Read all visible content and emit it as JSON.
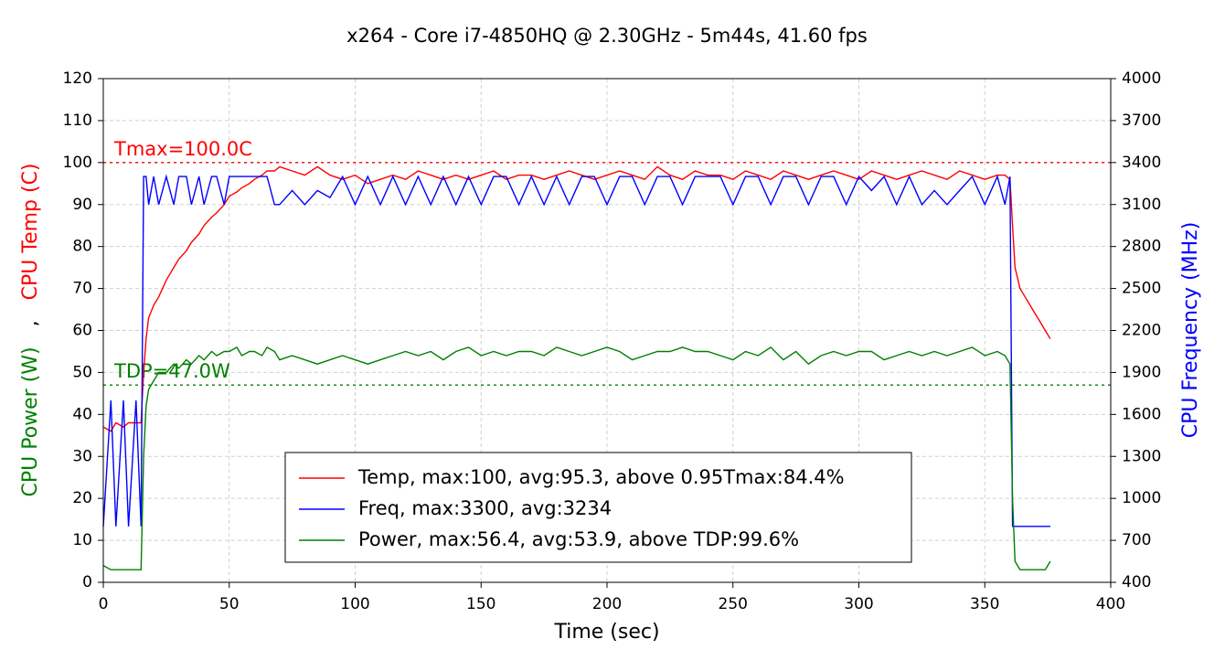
{
  "chart_data": {
    "type": "line",
    "title": "x264 - Core i7-4850HQ @ 2.30GHz - 5m44s, 41.60 fps",
    "xlabel": "Time (sec)",
    "ylabel_parts": [
      {
        "text": "CPU Power (W)",
        "color": "#008000"
      },
      {
        "text": ",",
        "color": "#000000"
      },
      {
        "text": "CPU Temp (C)",
        "color": "#ff0000"
      }
    ],
    "y2label": "CPU Frequency (MHz)",
    "y2label_color": "#0000ff",
    "xlim": [
      0,
      400
    ],
    "xticks": [
      0,
      50,
      100,
      150,
      200,
      250,
      300,
      350,
      400
    ],
    "ylim": [
      0,
      120
    ],
    "yticks": [
      0,
      10,
      20,
      30,
      40,
      50,
      60,
      70,
      80,
      90,
      100,
      110,
      120
    ],
    "y2lim": [
      400,
      4000
    ],
    "y2ticks": [
      400,
      700,
      1000,
      1300,
      1600,
      1900,
      2200,
      2500,
      2800,
      3100,
      3400,
      3700,
      4000
    ],
    "grid": true,
    "reference_lines": [
      {
        "text": "Tmax=100.0C",
        "y": 100,
        "color": "#ff0000"
      },
      {
        "text": "TDP=47.0W",
        "y": 47,
        "color": "#008000"
      }
    ],
    "x": [
      0,
      3,
      5,
      8,
      10,
      13,
      15,
      16,
      17,
      18,
      20,
      22,
      25,
      28,
      30,
      33,
      35,
      38,
      40,
      43,
      45,
      48,
      50,
      53,
      55,
      58,
      60,
      63,
      65,
      68,
      70,
      75,
      80,
      85,
      90,
      95,
      100,
      105,
      110,
      115,
      120,
      125,
      130,
      135,
      140,
      145,
      150,
      155,
      160,
      165,
      170,
      175,
      180,
      185,
      190,
      195,
      200,
      205,
      210,
      215,
      220,
      225,
      230,
      235,
      240,
      245,
      250,
      255,
      260,
      265,
      270,
      275,
      280,
      285,
      290,
      295,
      300,
      305,
      310,
      315,
      320,
      325,
      330,
      335,
      340,
      345,
      350,
      355,
      358,
      360,
      361,
      362,
      364,
      366,
      368,
      370,
      372,
      374,
      376
    ],
    "series": [
      {
        "name": "Temp, max:100, avg:95.3, above 0.95Tmax:84.4%",
        "color": "#ff0000",
        "axis": "y",
        "values": [
          37,
          36,
          38,
          37,
          38,
          38,
          38,
          50,
          58,
          63,
          66,
          68,
          72,
          75,
          77,
          79,
          81,
          83,
          85,
          87,
          88,
          90,
          92,
          93,
          94,
          95,
          96,
          97,
          98,
          98,
          99,
          98,
          97,
          99,
          97,
          96,
          97,
          95,
          96,
          97,
          96,
          98,
          97,
          96,
          97,
          96,
          97,
          98,
          96,
          97,
          97,
          96,
          97,
          98,
          97,
          96,
          97,
          98,
          97,
          96,
          99,
          97,
          96,
          98,
          97,
          97,
          96,
          98,
          97,
          96,
          98,
          97,
          96,
          97,
          98,
          97,
          96,
          98,
          97,
          96,
          97,
          98,
          97,
          96,
          98,
          97,
          96,
          97,
          97,
          96,
          85,
          75,
          70,
          68,
          66,
          64,
          62,
          60,
          58
        ]
      },
      {
        "name": "Freq, max:3300, avg:3234",
        "color": "#0000ff",
        "axis": "y2",
        "values": [
          800,
          1700,
          800,
          1700,
          800,
          1700,
          800,
          3300,
          3300,
          3100,
          3300,
          3100,
          3300,
          3100,
          3300,
          3300,
          3100,
          3300,
          3100,
          3300,
          3300,
          3100,
          3300,
          3300,
          3300,
          3300,
          3300,
          3300,
          3300,
          3100,
          3100,
          3200,
          3100,
          3200,
          3150,
          3300,
          3100,
          3300,
          3100,
          3300,
          3100,
          3300,
          3100,
          3300,
          3100,
          3300,
          3100,
          3300,
          3300,
          3100,
          3300,
          3100,
          3300,
          3100,
          3300,
          3300,
          3100,
          3300,
          3300,
          3100,
          3300,
          3300,
          3100,
          3300,
          3300,
          3300,
          3100,
          3300,
          3300,
          3100,
          3300,
          3300,
          3100,
          3300,
          3300,
          3100,
          3300,
          3200,
          3300,
          3100,
          3300,
          3100,
          3200,
          3100,
          3200,
          3300,
          3100,
          3300,
          3100,
          3300,
          800,
          800,
          800,
          800,
          800,
          800,
          800,
          800,
          800
        ]
      },
      {
        "name": "Power, max:56.4, avg:53.9, above TDP:99.6%",
        "color": "#008000",
        "axis": "y",
        "values": [
          4,
          3,
          3,
          3,
          3,
          3,
          3,
          30,
          42,
          46,
          48,
          50,
          50,
          52,
          51,
          53,
          52,
          54,
          53,
          55,
          54,
          55,
          55,
          56,
          54,
          55,
          55,
          54,
          56,
          55,
          53,
          54,
          53,
          52,
          53,
          54,
          53,
          52,
          53,
          54,
          55,
          54,
          55,
          53,
          55,
          56,
          54,
          55,
          54,
          55,
          55,
          54,
          56,
          55,
          54,
          55,
          56,
          55,
          53,
          54,
          55,
          55,
          56,
          55,
          55,
          54,
          53,
          55,
          54,
          56,
          53,
          55,
          52,
          54,
          55,
          54,
          55,
          55,
          53,
          54,
          55,
          54,
          55,
          54,
          55,
          56,
          54,
          55,
          54,
          52,
          20,
          5,
          3,
          3,
          3,
          3,
          3,
          3,
          5
        ]
      }
    ]
  }
}
